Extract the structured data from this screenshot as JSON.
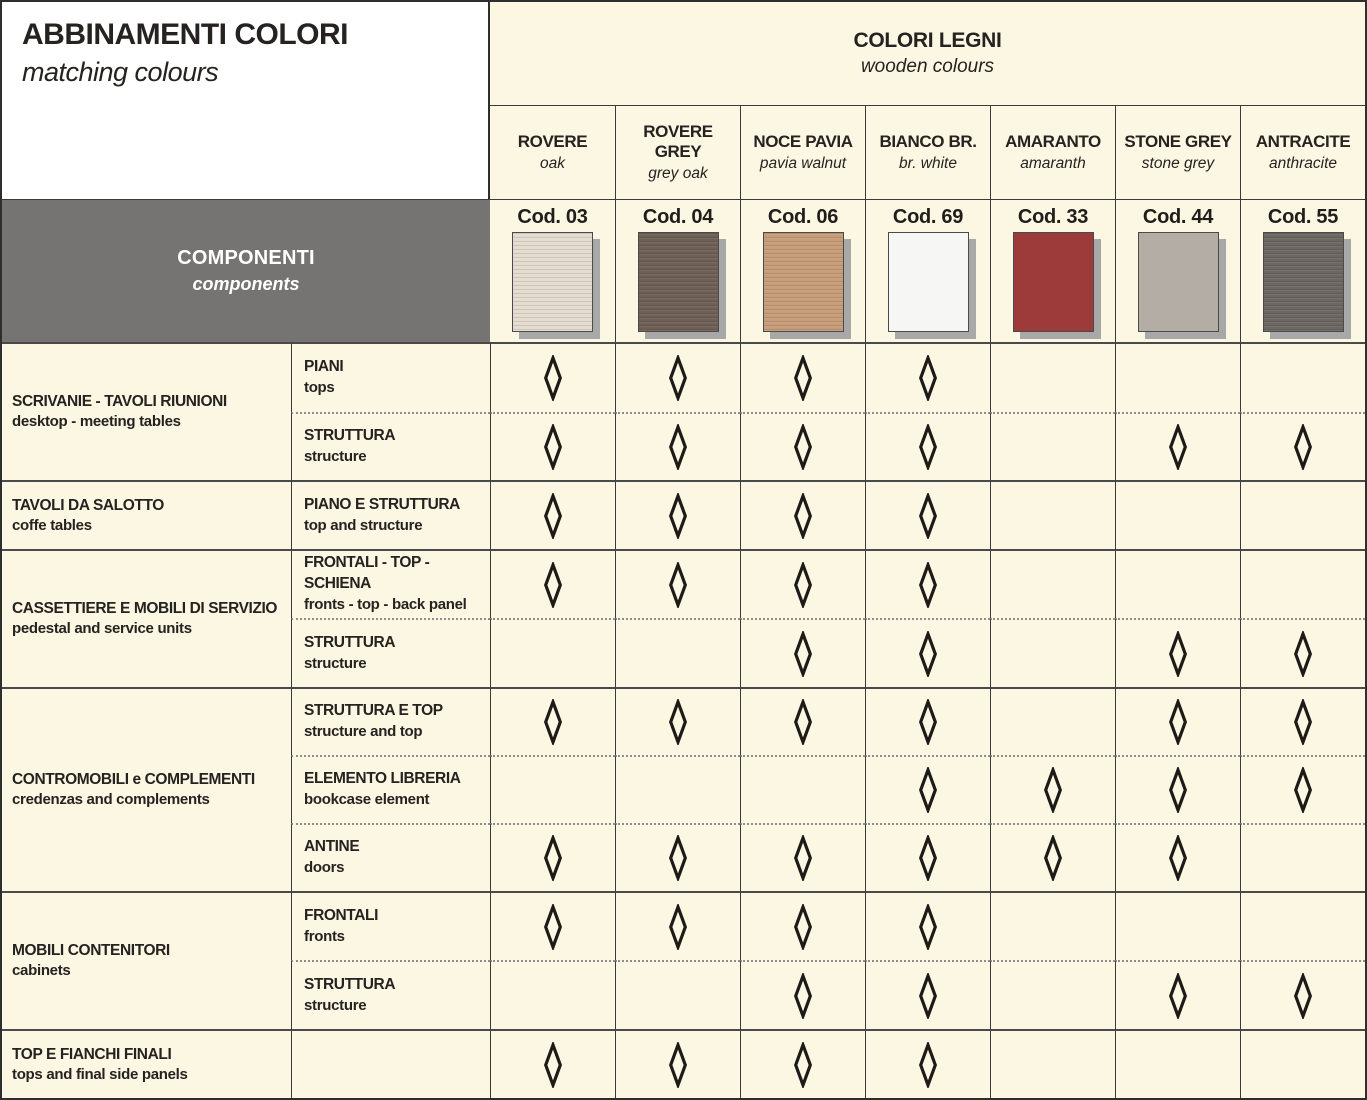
{
  "header": {
    "title": "ABBINAMENTI COLORI",
    "subtitle": "matching colours",
    "wood_group_title": "COLORI LEGNI",
    "wood_group_subtitle": "wooden colours",
    "components_title": "COMPONENTI",
    "components_subtitle": "components"
  },
  "mark_symbol": "diamond-outline",
  "palette": {
    "page_background": "#FBF7E3",
    "title_cell_background": "#FFFFFF",
    "components_header_background": "#767473",
    "components_header_text": "#FFFFFF",
    "text": "#262220",
    "grid_line": "#3A3A3A",
    "group_separator": "#4A4A4A",
    "dotted_separator": "#8D8D8D",
    "swatch_shadow": "#A8A8A8",
    "diamond_stroke": "#1D1A17"
  },
  "columns": [
    {
      "name": "ROVERE",
      "subname": "oak",
      "code": "Cod. 03",
      "swatch": "#E4DCD0",
      "textured": true
    },
    {
      "name": "ROVERE GREY",
      "subname": "grey oak",
      "code": "Cod. 04",
      "swatch": "#6E6056",
      "textured": true
    },
    {
      "name": "NOCE PAVIA",
      "subname": "pavia walnut",
      "code": "Cod. 06",
      "swatch": "#C69C79",
      "textured": true
    },
    {
      "name": "BIANCO BR.",
      "subname": "br. white",
      "code": "Cod. 69",
      "swatch": "#F6F6F5",
      "textured": false
    },
    {
      "name": "AMARANTO",
      "subname": "amaranth",
      "code": "Cod. 33",
      "swatch": "#9D3B3B",
      "textured": false
    },
    {
      "name": "STONE GREY",
      "subname": "stone grey",
      "code": "Cod. 44",
      "swatch": "#B4ADA5",
      "textured": false
    },
    {
      "name": "ANTRACITE",
      "subname": "anthracite",
      "code": "Cod. 55",
      "swatch": "#6C6762",
      "textured": true
    }
  ],
  "groups": [
    {
      "name": "SCRIVANIE - TAVOLI RIUNIONI",
      "subname": "desktop - meeting tables",
      "rows": [
        {
          "name": "PIANI",
          "subname": "tops",
          "marks": [
            1,
            1,
            1,
            1,
            0,
            0,
            0
          ]
        },
        {
          "name": "STRUTTURA",
          "subname": "structure",
          "marks": [
            1,
            1,
            1,
            1,
            0,
            1,
            1
          ]
        }
      ]
    },
    {
      "name": "TAVOLI DA SALOTTO",
      "subname": "coffe tables",
      "rows": [
        {
          "name": "PIANO E STRUTTURA",
          "subname": "top and structure",
          "marks": [
            1,
            1,
            1,
            1,
            0,
            0,
            0
          ]
        }
      ]
    },
    {
      "name": "CASSETTIERE E MOBILI DI SERVIZIO",
      "subname": "pedestal and service units",
      "rows": [
        {
          "name": "FRONTALI - TOP -SCHIENA",
          "subname": "fronts - top - back panel",
          "marks": [
            1,
            1,
            1,
            1,
            0,
            0,
            0
          ]
        },
        {
          "name": "STRUTTURA",
          "subname": "structure",
          "marks": [
            0,
            0,
            1,
            1,
            0,
            1,
            1
          ]
        }
      ]
    },
    {
      "name": "CONTROMOBILI e COMPLEMENTI",
      "subname": "credenzas and complements",
      "rows": [
        {
          "name": "STRUTTURA E TOP",
          "subname": "structure and top",
          "marks": [
            1,
            1,
            1,
            1,
            0,
            1,
            1
          ]
        },
        {
          "name": "ELEMENTO LIBRERIA",
          "subname": "bookcase element",
          "marks": [
            0,
            0,
            0,
            1,
            1,
            1,
            1
          ]
        },
        {
          "name": "ANTINE",
          "subname": "doors",
          "marks": [
            1,
            1,
            1,
            1,
            1,
            1,
            0
          ]
        }
      ]
    },
    {
      "name": "MOBILI CONTENITORI",
      "subname": "cabinets",
      "rows": [
        {
          "name": "FRONTALI",
          "subname": "fronts",
          "marks": [
            1,
            1,
            1,
            1,
            0,
            0,
            0
          ]
        },
        {
          "name": "STRUTTURA",
          "subname": "structure",
          "marks": [
            0,
            0,
            1,
            1,
            0,
            1,
            1
          ]
        }
      ]
    },
    {
      "name": "TOP E FIANCHI FINALI",
      "subname": "tops and final side panels",
      "rows": [
        {
          "name": "",
          "subname": "",
          "marks": [
            1,
            1,
            1,
            1,
            0,
            0,
            0
          ]
        }
      ]
    }
  ]
}
